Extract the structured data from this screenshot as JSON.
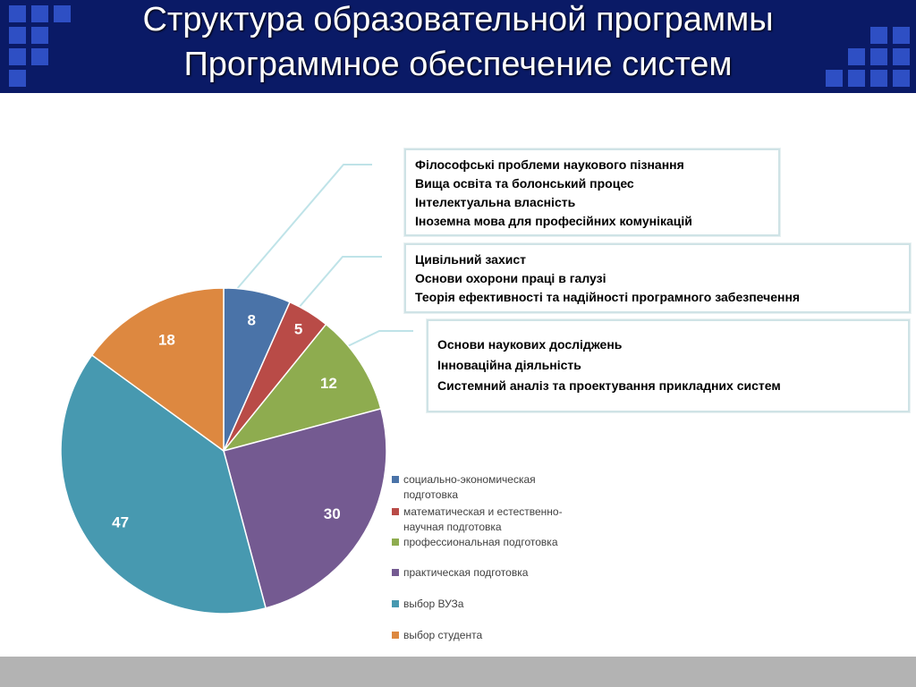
{
  "slide": {
    "title_lines": [
      "Структура образовательной программы",
      "Программное обеспечение систем"
    ],
    "accent_header": "#0a1a66",
    "accent_squares": "#2e4fc4"
  },
  "callouts": [
    {
      "items": [
        "Філософські проблеми наукового пізнання",
        "Вища освіта та болонський процес",
        "Інтелектуальна власність",
        "Іноземна мова для професійних комунікацій"
      ]
    },
    {
      "items": [
        "Цивільний захист",
        "Основи охорони праці в галузі",
        "Теорія ефективності та надійності програмного забезпечення"
      ]
    },
    {
      "items": [
        "Основи наукових досліджень",
        "Інноваційна діяльність",
        "Системний аналіз та проектування прикладних систем"
      ]
    }
  ],
  "chart_data": {
    "type": "pie",
    "start": "12 o'clock, clockwise",
    "legend_position": "right",
    "slices": [
      {
        "label": "социально-экономическая подготовка",
        "value": 8,
        "color": "#4a73a8"
      },
      {
        "label": "математическая и естественно-научная подготовка",
        "value": 5,
        "color": "#b94b47"
      },
      {
        "label": "профессиональная подготовка",
        "value": 12,
        "color": "#8eac4f"
      },
      {
        "label": "практическая подготовка",
        "value": 30,
        "color": "#745a91"
      },
      {
        "label": "выбор ВУЗа",
        "value": 47,
        "color": "#4799b0"
      },
      {
        "label": "выбор студента",
        "value": 18,
        "color": "#dd8840"
      }
    ]
  }
}
